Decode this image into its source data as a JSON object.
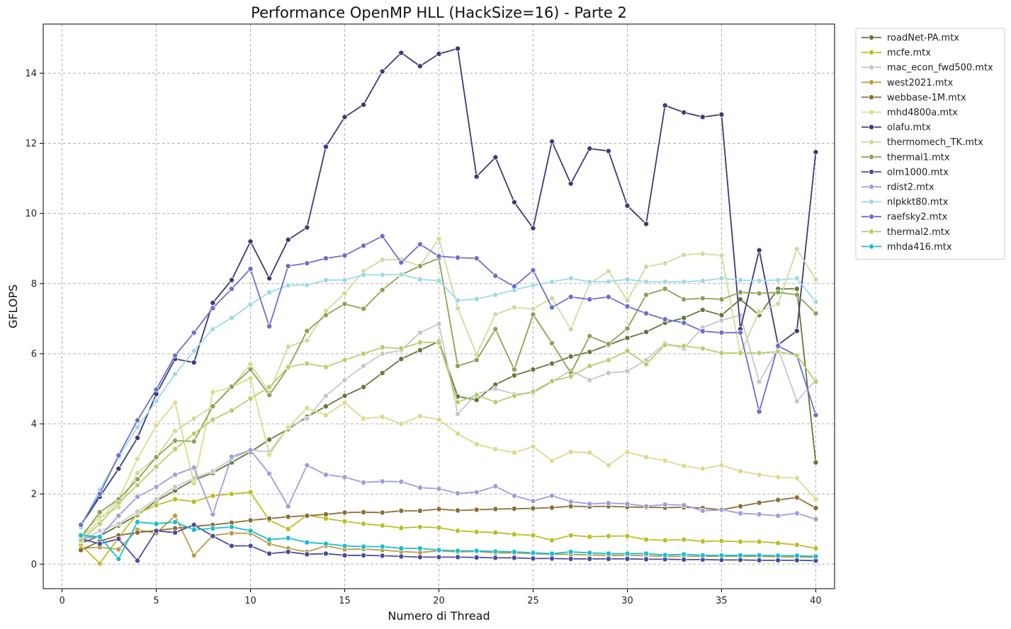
{
  "chart_data": {
    "type": "line",
    "title": "Performance OpenMP HLL (HackSize=16) - Parte 2",
    "xlabel": "Numero di Thread",
    "ylabel": "GFLOPS",
    "xlim": [
      -1,
      41
    ],
    "ylim": [
      -0.7,
      15.4
    ],
    "xticks": [
      0,
      5,
      10,
      15,
      20,
      25,
      30,
      35,
      40
    ],
    "yticks": [
      0,
      2,
      4,
      6,
      8,
      10,
      12,
      14
    ],
    "grid": true,
    "legend_position": "outside-top-right",
    "x": [
      1,
      2,
      3,
      4,
      5,
      6,
      7,
      8,
      9,
      10,
      11,
      12,
      13,
      14,
      15,
      16,
      17,
      18,
      19,
      20,
      21,
      22,
      23,
      24,
      25,
      26,
      27,
      28,
      29,
      30,
      31,
      32,
      33,
      34,
      35,
      36,
      37,
      38,
      39,
      40
    ],
    "series": [
      {
        "name": "roadNet-PA.mtx",
        "color": "#5f7a3a",
        "values": [
          0.6,
          0.8,
          1.1,
          1.4,
          1.8,
          2.1,
          2.4,
          2.6,
          2.9,
          3.2,
          3.55,
          3.85,
          4.2,
          4.5,
          4.8,
          5.05,
          5.45,
          5.85,
          6.1,
          6.35,
          4.78,
          4.68,
          5.12,
          5.38,
          5.55,
          5.72,
          5.92,
          6.05,
          6.25,
          6.45,
          6.62,
          6.88,
          7.02,
          7.25,
          7.1,
          7.55,
          7.1,
          7.85,
          7.85,
          2.9
        ]
      },
      {
        "name": "mcfe.mtx",
        "color": "#bcbd22",
        "values": [
          0.55,
          0.02,
          0.75,
          1.45,
          1.68,
          1.85,
          1.78,
          1.95,
          2.0,
          2.05,
          1.25,
          1.0,
          1.4,
          1.3,
          1.22,
          1.15,
          1.1,
          1.03,
          1.06,
          1.04,
          0.95,
          0.92,
          0.9,
          0.85,
          0.82,
          0.68,
          0.82,
          0.78,
          0.8,
          0.8,
          0.7,
          0.68,
          0.7,
          0.65,
          0.66,
          0.64,
          0.64,
          0.6,
          0.55,
          0.45
        ]
      },
      {
        "name": "mac_econ_fwd500.mtx",
        "color": "#c7c7c7",
        "values": [
          0.65,
          0.95,
          1.15,
          1.5,
          1.85,
          2.2,
          2.45,
          2.65,
          3.0,
          3.25,
          3.2,
          3.9,
          4.15,
          4.8,
          5.25,
          5.65,
          6.0,
          6.1,
          6.6,
          6.85,
          4.28,
          4.85,
          5.0,
          4.85,
          4.88,
          5.2,
          5.52,
          5.25,
          5.45,
          5.5,
          5.82,
          6.3,
          6.15,
          6.75,
          6.95,
          7.1,
          5.2,
          6.15,
          4.65,
          5.25
        ]
      },
      {
        "name": "west2021.mtx",
        "color": "#bd9b40",
        "values": [
          0.45,
          0.48,
          0.42,
          0.98,
          0.88,
          1.38,
          0.25,
          0.82,
          0.88,
          0.88,
          0.58,
          0.45,
          0.35,
          0.52,
          0.42,
          0.43,
          0.4,
          0.36,
          0.33,
          0.38,
          0.35,
          0.36,
          0.32,
          0.32,
          0.3,
          0.28,
          0.28,
          0.26,
          0.25,
          0.25,
          0.24,
          0.22,
          0.22,
          0.22,
          0.22,
          0.22,
          0.22,
          0.21,
          0.2,
          0.2
        ]
      },
      {
        "name": "webbase-1M.mtx",
        "color": "#8c6d31",
        "values": [
          0.4,
          0.65,
          0.82,
          0.9,
          0.96,
          1.02,
          1.08,
          1.12,
          1.18,
          1.25,
          1.3,
          1.35,
          1.38,
          1.42,
          1.47,
          1.48,
          1.47,
          1.52,
          1.52,
          1.57,
          1.53,
          1.55,
          1.57,
          1.58,
          1.59,
          1.61,
          1.65,
          1.64,
          1.65,
          1.63,
          1.62,
          1.61,
          1.62,
          1.6,
          1.55,
          1.65,
          1.75,
          1.83,
          1.9,
          1.6
        ]
      },
      {
        "name": "mhd4800a.mtx",
        "color": "#dbdb8d",
        "values": [
          0.75,
          1.25,
          1.85,
          3.0,
          3.95,
          4.6,
          2.3,
          4.9,
          5.05,
          5.3,
          3.12,
          3.9,
          4.45,
          4.25,
          4.6,
          4.15,
          4.2,
          4.0,
          4.22,
          4.12,
          3.72,
          3.42,
          3.28,
          3.18,
          3.35,
          2.95,
          3.2,
          3.18,
          2.82,
          3.2,
          3.05,
          2.95,
          2.8,
          2.72,
          2.82,
          2.65,
          2.55,
          2.48,
          2.45,
          1.85
        ]
      },
      {
        "name": "olafu.mtx",
        "color": "#393b79",
        "values": [
          1.1,
          1.92,
          2.72,
          3.6,
          4.85,
          5.85,
          5.75,
          7.45,
          8.1,
          9.2,
          8.15,
          9.25,
          9.6,
          11.9,
          12.75,
          13.1,
          14.05,
          14.58,
          14.2,
          14.55,
          14.7,
          11.05,
          11.6,
          10.32,
          9.58,
          12.05,
          10.85,
          11.85,
          11.78,
          10.22,
          9.7,
          13.08,
          12.88,
          12.75,
          12.82,
          6.7,
          8.95,
          6.25,
          6.65,
          11.75
        ]
      },
      {
        "name": "thermomech_TK.mtx",
        "color": "#cedb9c",
        "values": [
          0.85,
          1.35,
          1.62,
          2.6,
          3.05,
          3.8,
          4.15,
          4.5,
          5.05,
          5.7,
          4.9,
          6.2,
          6.38,
          7.22,
          7.72,
          8.35,
          8.68,
          8.68,
          8.5,
          9.28,
          7.3,
          5.98,
          7.12,
          7.32,
          7.28,
          7.58,
          6.7,
          8.0,
          8.35,
          7.52,
          8.48,
          8.58,
          8.82,
          8.85,
          8.8,
          6.0,
          7.2,
          7.42,
          8.98,
          8.12
        ]
      },
      {
        "name": "thermal1.mtx",
        "color": "#8ca252",
        "values": [
          0.75,
          1.48,
          1.85,
          2.42,
          3.05,
          3.52,
          3.5,
          4.5,
          5.06,
          5.55,
          4.82,
          5.6,
          6.65,
          7.1,
          7.42,
          7.28,
          7.82,
          8.25,
          8.5,
          8.72,
          5.65,
          5.82,
          6.7,
          5.55,
          7.12,
          6.3,
          5.45,
          6.5,
          6.28,
          6.72,
          7.68,
          7.85,
          7.55,
          7.58,
          7.55,
          7.75,
          7.72,
          7.75,
          7.68,
          7.15
        ]
      },
      {
        "name": "olm1000.mtx",
        "color": "#4a4b9c",
        "values": [
          0.72,
          0.58,
          0.72,
          0.1,
          0.95,
          0.9,
          1.12,
          0.8,
          0.52,
          0.52,
          0.3,
          0.35,
          0.28,
          0.3,
          0.25,
          0.25,
          0.24,
          0.22,
          0.2,
          0.2,
          0.2,
          0.19,
          0.18,
          0.18,
          0.16,
          0.16,
          0.15,
          0.15,
          0.15,
          0.15,
          0.14,
          0.14,
          0.13,
          0.13,
          0.12,
          0.12,
          0.11,
          0.11,
          0.11,
          0.1
        ]
      },
      {
        "name": "rdist2.mtx",
        "color": "#9c9ede",
        "values": [
          0.75,
          0.78,
          1.38,
          1.92,
          2.2,
          2.55,
          2.75,
          1.42,
          3.06,
          3.25,
          2.58,
          1.65,
          2.82,
          2.55,
          2.48,
          2.33,
          2.36,
          2.35,
          2.18,
          2.15,
          2.02,
          2.05,
          2.22,
          1.95,
          1.8,
          1.95,
          1.78,
          1.72,
          1.74,
          1.72,
          1.65,
          1.7,
          1.68,
          1.52,
          1.55,
          1.45,
          1.42,
          1.38,
          1.45,
          1.28
        ]
      },
      {
        "name": "nlpkkt80.mtx",
        "color": "#9edae5",
        "values": [
          1.05,
          2.12,
          3.05,
          3.9,
          4.65,
          5.42,
          6.08,
          6.7,
          7.02,
          7.4,
          7.75,
          7.95,
          7.96,
          8.1,
          8.1,
          8.25,
          8.25,
          8.26,
          8.12,
          8.08,
          7.52,
          7.56,
          7.68,
          7.82,
          7.95,
          8.05,
          8.15,
          8.05,
          8.06,
          8.12,
          8.05,
          8.05,
          8.05,
          8.08,
          8.15,
          8.1,
          8.08,
          8.1,
          8.15,
          7.48
        ]
      },
      {
        "name": "raefsky2.mtx",
        "color": "#6b6ecf",
        "values": [
          1.12,
          2.0,
          3.1,
          4.1,
          4.98,
          5.95,
          6.6,
          7.3,
          7.85,
          8.42,
          6.78,
          8.5,
          8.58,
          8.72,
          8.8,
          9.08,
          9.35,
          8.6,
          9.12,
          8.78,
          8.74,
          8.72,
          8.22,
          7.92,
          8.38,
          7.32,
          7.62,
          7.55,
          7.62,
          7.35,
          7.15,
          6.98,
          6.88,
          6.64,
          6.6,
          6.6,
          4.35,
          6.22,
          5.95,
          4.25
        ]
      },
      {
        "name": "thermal2.mtx",
        "color": "#b5cf6b",
        "values": [
          0.68,
          1.15,
          1.75,
          2.25,
          2.78,
          3.28,
          3.72,
          4.12,
          4.38,
          4.72,
          5.05,
          5.62,
          5.72,
          5.62,
          5.82,
          6.0,
          6.18,
          6.15,
          6.32,
          6.32,
          4.62,
          4.82,
          4.62,
          4.8,
          4.92,
          5.22,
          5.35,
          5.65,
          5.82,
          6.08,
          5.7,
          6.25,
          6.22,
          6.15,
          6.02,
          6.02,
          6.02,
          6.06,
          5.95,
          5.2
        ]
      },
      {
        "name": "mhda416.mtx",
        "color": "#17becf",
        "values": [
          0.82,
          0.78,
          0.15,
          1.2,
          1.15,
          1.2,
          0.98,
          1.02,
          1.06,
          0.95,
          0.7,
          0.74,
          0.62,
          0.58,
          0.52,
          0.5,
          0.5,
          0.45,
          0.45,
          0.4,
          0.38,
          0.38,
          0.36,
          0.35,
          0.32,
          0.3,
          0.35,
          0.32,
          0.3,
          0.3,
          0.3,
          0.26,
          0.28,
          0.25,
          0.25,
          0.25,
          0.25,
          0.24,
          0.24,
          0.22
        ]
      }
    ]
  }
}
